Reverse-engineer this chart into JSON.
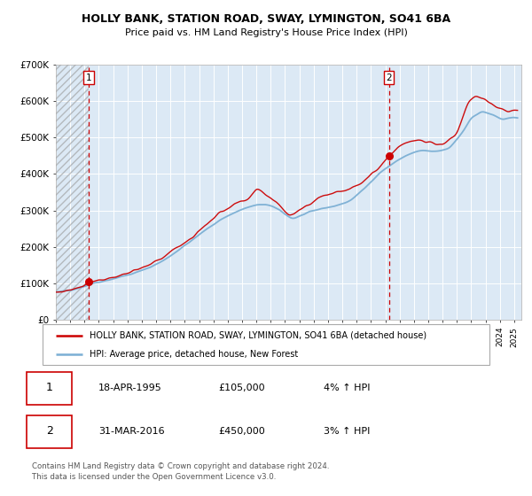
{
  "title": "HOLLY BANK, STATION ROAD, SWAY, LYMINGTON, SO41 6BA",
  "subtitle": "Price paid vs. HM Land Registry's House Price Index (HPI)",
  "red_label": "HOLLY BANK, STATION ROAD, SWAY, LYMINGTON, SO41 6BA (detached house)",
  "blue_label": "HPI: Average price, detached house, New Forest",
  "footer": "Contains HM Land Registry data © Crown copyright and database right 2024.\nThis data is licensed under the Open Government Licence v3.0.",
  "sale1": {
    "label": "1",
    "date": "18-APR-1995",
    "price": 105000,
    "hpi_pct": "4%",
    "year_x": 1995.29
  },
  "sale2": {
    "label": "2",
    "date": "31-MAR-2016",
    "price": 450000,
    "hpi_pct": "3%",
    "year_x": 2016.25
  },
  "ylim": [
    0,
    700000
  ],
  "xlim_start": 1993.0,
  "xlim_end": 2025.5,
  "hatch_end": 1995.29,
  "plot_bg": "#dce9f5",
  "grid_color": "#ffffff",
  "red_color": "#cc0000",
  "blue_color": "#7bafd4",
  "dashed_line_color": "#cc0000",
  "anchors_x_hpi": [
    1993.0,
    1994.0,
    1995.0,
    1995.5,
    1996.5,
    1997.5,
    1998.5,
    1999.5,
    2000.5,
    2001.5,
    2002.5,
    2003.5,
    2004.5,
    2005.5,
    2006.5,
    2007.5,
    2008.5,
    2009.5,
    2010.5,
    2011.5,
    2012.5,
    2013.5,
    2014.5,
    2015.5,
    2016.5,
    2017.5,
    2018.5,
    2019.5,
    2020.5,
    2021.5,
    2022.0,
    2022.8,
    2023.5,
    2024.2,
    2025.0
  ],
  "anchors_y_hpi": [
    75000,
    82000,
    92000,
    100000,
    108000,
    118000,
    128000,
    143000,
    162000,
    190000,
    218000,
    248000,
    275000,
    295000,
    310000,
    318000,
    305000,
    276000,
    292000,
    305000,
    312000,
    325000,
    358000,
    400000,
    428000,
    452000,
    465000,
    460000,
    470000,
    520000,
    556000,
    572000,
    562000,
    548000,
    555000
  ],
  "anchors_x_red": [
    1993.0,
    1994.0,
    1995.0,
    1995.3,
    1996.5,
    1997.5,
    1998.5,
    1999.5,
    2000.5,
    2001.5,
    2002.5,
    2003.5,
    2004.5,
    2005.5,
    2006.5,
    2007.0,
    2007.8,
    2008.5,
    2009.3,
    2010.0,
    2010.8,
    2011.5,
    2012.5,
    2013.5,
    2014.5,
    2015.5,
    2016.25,
    2017.0,
    2018.0,
    2019.0,
    2020.0,
    2021.0,
    2021.8,
    2022.3,
    2022.8,
    2023.3,
    2024.0,
    2024.5,
    2025.0
  ],
  "anchors_y_red": [
    75000,
    82000,
    95000,
    105000,
    112000,
    122000,
    134000,
    150000,
    172000,
    200000,
    225000,
    262000,
    295000,
    318000,
    330000,
    360000,
    340000,
    320000,
    285000,
    302000,
    318000,
    340000,
    348000,
    360000,
    380000,
    415000,
    450000,
    478000,
    492000,
    488000,
    480000,
    510000,
    600000,
    615000,
    608000,
    592000,
    580000,
    570000,
    575000
  ]
}
